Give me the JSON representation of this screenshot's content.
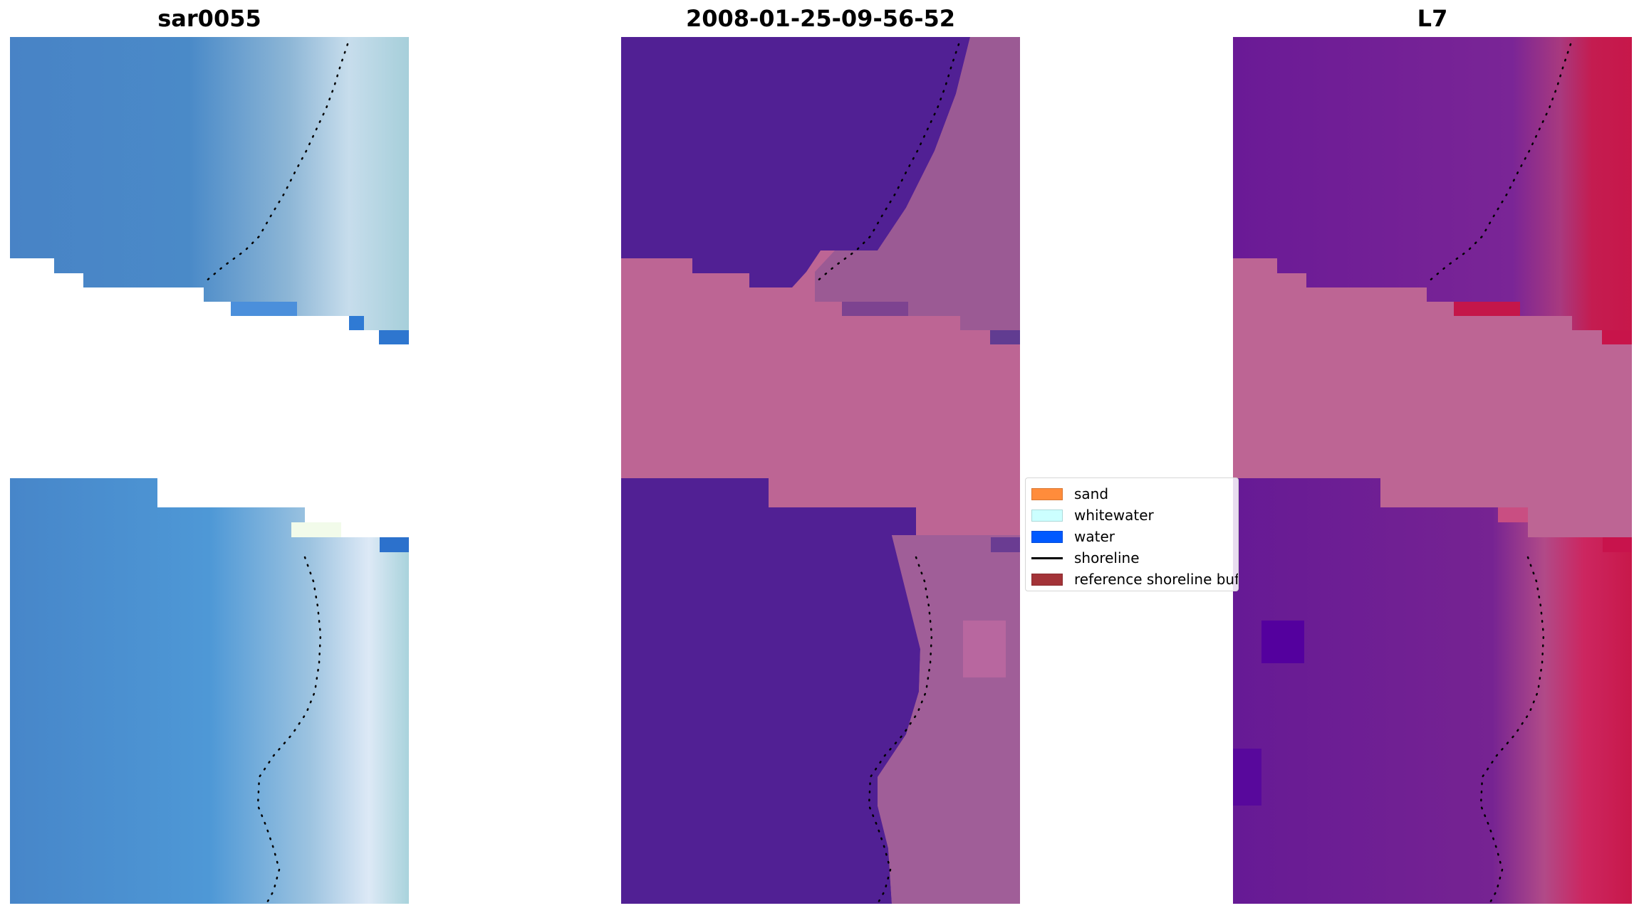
{
  "figure": {
    "panels": [
      {
        "title": "sar0055"
      },
      {
        "title": "2008-01-25-09-56-52"
      },
      {
        "title": "L7"
      }
    ]
  },
  "legend": {
    "items": [
      {
        "label": "sand",
        "kind": "patch",
        "color": "#FF8C3B"
      },
      {
        "label": "whitewater",
        "kind": "patch",
        "color": "#CCFFFF"
      },
      {
        "label": "water",
        "kind": "patch",
        "color": "#0059FF"
      },
      {
        "label": "shoreline",
        "kind": "line",
        "color": "#000000"
      },
      {
        "label": "reference shoreline buffer",
        "kind": "patch",
        "color": "#A33338"
      }
    ]
  },
  "colors": {
    "nodata_stripe": "#BD6594",
    "classified_water": "#512094",
    "classified_land": "#9B5A94",
    "mndwi_water": "#681A94",
    "mndwi_land": "#C41844",
    "rgb_water": "#4585C8",
    "rgb_surf": "#C8DCEB"
  }
}
